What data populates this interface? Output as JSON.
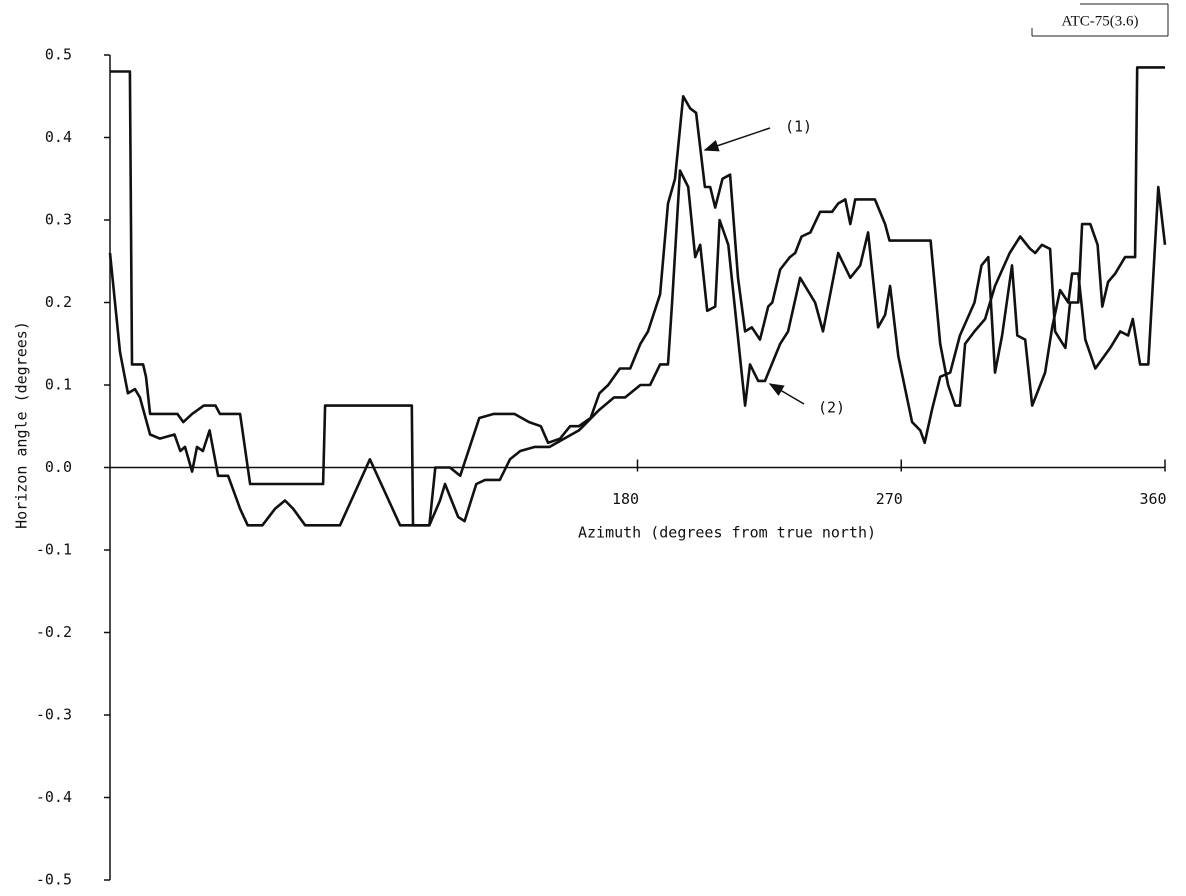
{
  "chart_data": {
    "type": "line",
    "x_label": "Azimuth (degrees from true north)",
    "y_label": "Horizon angle (degrees)",
    "annotations": {
      "figure_id": "ATC-75(3.6)"
    },
    "xlim": [
      0,
      360
    ],
    "xticks": [
      180,
      270,
      360
    ],
    "ylim": [
      -0.5,
      0.5
    ],
    "yticks": [
      0.5,
      0.4,
      0.3,
      0.2,
      0.1,
      {
        "value": 0,
        "label": "0.0"
      },
      -0.1,
      -0.2,
      -0.3,
      -0.4,
      -0.5
    ],
    "series": [
      {
        "name": "(1)",
        "color": "#111111",
        "x": [
          0,
          6.8,
          7.5,
          11.3,
          12.3,
          13.7,
          23,
          25,
          28,
          32,
          36,
          37.5,
          44.4,
          47.8,
          72.7,
          73.4,
          103,
          103.4,
          109,
          111,
          116,
          119.5,
          126,
          131,
          138,
          143,
          147,
          149.5,
          153.6,
          157,
          160,
          164,
          167,
          170,
          174,
          177.5,
          181,
          183.6,
          187.7,
          190.4,
          192.8,
          195.6,
          198,
          200,
          203,
          204.8,
          206.5,
          209,
          211.6,
          214.3,
          216.7,
          219,
          221.8,
          224.6,
          226,
          228.7,
          232,
          233.8,
          236,
          239,
          242.3,
          246.4,
          248.5,
          250.9,
          252.6,
          254.3,
          261,
          264.5,
          266,
          280,
          283.3,
          286,
          288.4,
          290,
          291.8,
          295,
          298.6,
          302,
          307,
          310.6,
          314,
          315.7,
          318,
          320.8,
          322.5,
          324.2,
          326,
          327.6,
          330.4,
          331.7,
          334.5,
          337,
          338.6,
          340.6,
          343,
          346.4,
          349.8,
          350.5,
          360
        ],
        "values": [
          0.48,
          0.48,
          0.125,
          0.125,
          0.11,
          0.065,
          0.065,
          0.055,
          0.065,
          0.075,
          0.075,
          0.065,
          0.065,
          -0.02,
          -0.02,
          0.075,
          0.075,
          -0.07,
          -0.07,
          0.0,
          0.0,
          -0.01,
          0.06,
          0.065,
          0.065,
          0.055,
          0.05,
          0.03,
          0.035,
          0.05,
          0.05,
          0.06,
          0.09,
          0.1,
          0.12,
          0.12,
          0.15,
          0.165,
          0.21,
          0.32,
          0.35,
          0.45,
          0.435,
          0.43,
          0.34,
          0.34,
          0.315,
          0.35,
          0.355,
          0.23,
          0.165,
          0.17,
          0.155,
          0.195,
          0.2,
          0.24,
          0.255,
          0.26,
          0.28,
          0.285,
          0.31,
          0.31,
          0.32,
          0.325,
          0.295,
          0.325,
          0.325,
          0.295,
          0.275,
          0.275,
          0.15,
          0.1,
          0.075,
          0.075,
          0.15,
          0.165,
          0.18,
          0.22,
          0.26,
          0.28,
          0.265,
          0.26,
          0.27,
          0.265,
          0.165,
          0.155,
          0.145,
          0.2,
          0.2,
          0.295,
          0.295,
          0.27,
          0.195,
          0.225,
          0.235,
          0.255,
          0.255,
          0.485,
          0.485
        ]
      },
      {
        "name": "(2)",
        "color": "#111111",
        "x": [
          0,
          3.4,
          6.1,
          8.5,
          10.2,
          13.7,
          17,
          22,
          24,
          25.6,
          28,
          29.7,
          31.7,
          34,
          36.9,
          40.3,
          44.4,
          47,
          52,
          56.3,
          59.7,
          62.5,
          66.6,
          78.5,
          88.7,
          99,
          109,
          112.6,
          114.3,
          118.8,
          121,
          125,
          128,
          133,
          136.5,
          140,
          145,
          150,
          155,
          160,
          167,
          172,
          175.8,
          181,
          184.3,
          187.7,
          190.4,
          191.8,
          194.5,
          197.3,
          199.7,
          201.4,
          203.8,
          206.5,
          208,
          211,
          216.7,
          218.4,
          221.2,
          223.5,
          228.7,
          231.4,
          235.5,
          240.6,
          243.3,
          248.5,
          252.6,
          256,
          258.7,
          262.1,
          264.5,
          266.2,
          269,
          273.7,
          276.5,
          278,
          280.5,
          283.3,
          286.7,
          290,
          295,
          297.4,
          299.7,
          302,
          304.4,
          307.8,
          309.6,
          312.3,
          314.7,
          319.1,
          321.5,
          324.2,
          327,
          328.3,
          330.4,
          332.8,
          336.2,
          341.3,
          344.7,
          347.4,
          349,
          351.5,
          354.3,
          357.7,
          360
        ],
        "values": [
          0.26,
          0.14,
          0.09,
          0.095,
          0.085,
          0.04,
          0.035,
          0.04,
          0.02,
          0.025,
          -0.005,
          0.025,
          0.02,
          0.045,
          -0.01,
          -0.01,
          -0.05,
          -0.07,
          -0.07,
          -0.05,
          -0.04,
          -0.05,
          -0.07,
          -0.07,
          0.01,
          -0.07,
          -0.07,
          -0.04,
          -0.02,
          -0.06,
          -0.065,
          -0.02,
          -0.015,
          -0.015,
          0.01,
          0.02,
          0.025,
          0.025,
          0.035,
          0.045,
          0.07,
          0.085,
          0.085,
          0.1,
          0.1,
          0.125,
          0.125,
          0.2,
          0.36,
          0.34,
          0.255,
          0.27,
          0.19,
          0.195,
          0.3,
          0.27,
          0.075,
          0.125,
          0.105,
          0.105,
          0.15,
          0.165,
          0.23,
          0.2,
          0.165,
          0.26,
          0.23,
          0.245,
          0.285,
          0.17,
          0.185,
          0.22,
          0.135,
          0.055,
          0.045,
          0.03,
          0.07,
          0.11,
          0.115,
          0.16,
          0.2,
          0.245,
          0.255,
          0.115,
          0.16,
          0.245,
          0.16,
          0.155,
          0.075,
          0.115,
          0.17,
          0.215,
          0.2,
          0.235,
          0.235,
          0.155,
          0.12,
          0.145,
          0.165,
          0.16,
          0.18,
          0.125,
          0.125,
          0.34,
          0.27
        ]
      }
    ]
  }
}
